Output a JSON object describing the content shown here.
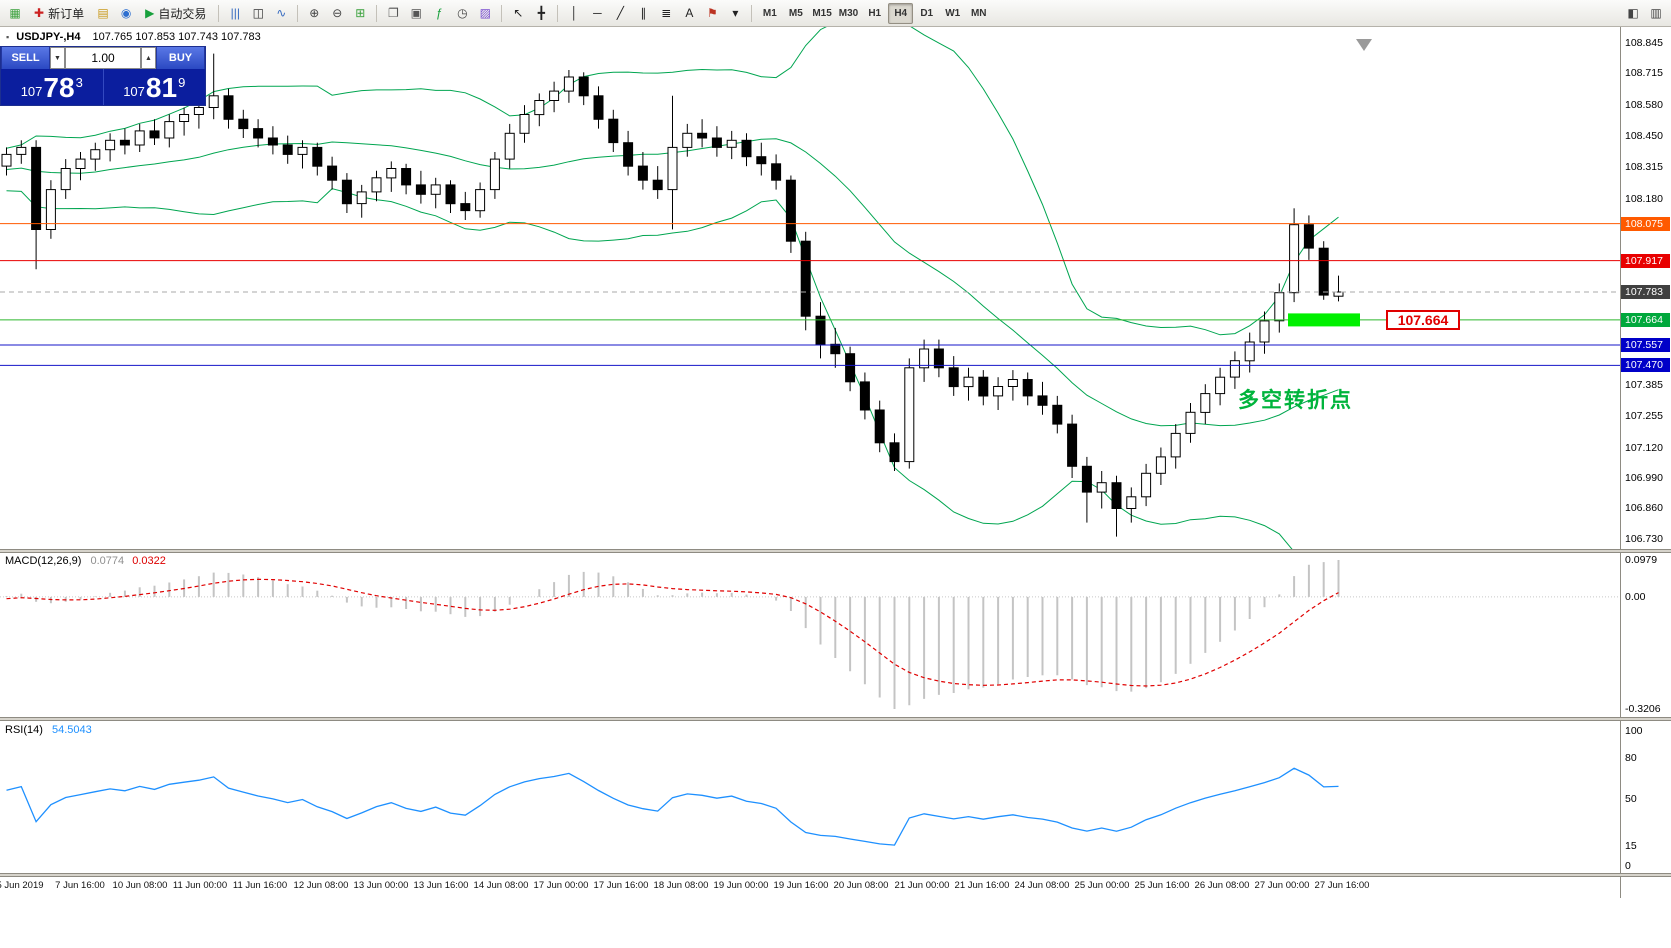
{
  "colors": {
    "bands": "#00A550",
    "candle_up": "#ffffff",
    "candle_down": "#000000",
    "macd_hist": "#c4c4c4",
    "macd_signal": "#e00000",
    "rsi": "#1E90FF",
    "accent_blue": "#0b1e9e"
  },
  "toolbar": {
    "items": [
      {
        "t": "icon",
        "name": "new-chart-button",
        "g": "▦",
        "c": "#3aa13c"
      },
      {
        "t": "btn",
        "name": "new-order-button",
        "label": "新订单",
        "g": "✚",
        "c": "#cc2222"
      },
      {
        "t": "icon",
        "name": "profiles-button",
        "g": "▤",
        "c": "#c99a1e"
      },
      {
        "t": "icon",
        "name": "market-watch-button",
        "g": "◉",
        "c": "#2d6fd0"
      },
      {
        "t": "btn",
        "name": "algo-trading-button",
        "label": "自动交易",
        "g": "▶",
        "c": "#18a03c"
      },
      {
        "t": "sep"
      },
      {
        "t": "icon",
        "name": "bar-chart-button",
        "g": "|||",
        "c": "#356ac0"
      },
      {
        "t": "icon",
        "name": "candlestick-chart-button",
        "g": "◫",
        "c": "#333333"
      },
      {
        "t": "icon",
        "name": "line-chart-button",
        "g": "∿",
        "c": "#356ac0"
      },
      {
        "t": "sep"
      },
      {
        "t": "icon",
        "name": "zoom-in-button",
        "g": "⊕",
        "c": "#444444"
      },
      {
        "t": "icon",
        "name": "zoom-out-button",
        "g": "⊖",
        "c": "#444444"
      },
      {
        "t": "icon",
        "name": "tile-windows-button",
        "g": "⊞",
        "c": "#3aa13c"
      },
      {
        "t": "sep"
      },
      {
        "t": "icon",
        "name": "arrange-windows-button",
        "g": "❐",
        "c": "#555555"
      },
      {
        "t": "icon",
        "name": "cascade-windows-button",
        "g": "▣",
        "c": "#555555"
      },
      {
        "t": "icon",
        "name": "indicators-button",
        "g": "ƒ",
        "c": "#18a03c"
      },
      {
        "t": "icon",
        "name": "periods-button",
        "g": "◷",
        "c": "#444444"
      },
      {
        "t": "icon",
        "name": "templates-button",
        "g": "▨",
        "c": "#7a4fd0"
      },
      {
        "t": "sep"
      },
      {
        "t": "icon",
        "name": "cursor-button",
        "g": "↖",
        "c": "#222222"
      },
      {
        "t": "icon",
        "name": "crosshair-button",
        "g": "╋",
        "c": "#222222"
      },
      {
        "t": "sep"
      },
      {
        "t": "icon",
        "name": "vertical-line-button",
        "g": "│",
        "c": "#222222"
      },
      {
        "t": "icon",
        "name": "horizontal-line-button",
        "g": "─",
        "c": "#222222"
      },
      {
        "t": "icon",
        "name": "trendline-button",
        "g": "╱",
        "c": "#222222"
      },
      {
        "t": "icon",
        "name": "channel-button",
        "g": "∥",
        "c": "#222222"
      },
      {
        "t": "icon",
        "name": "fibonacci-button",
        "g": "≣",
        "c": "#222222"
      },
      {
        "t": "icon",
        "name": "text-button",
        "g": "A",
        "c": "#222222"
      },
      {
        "t": "icon",
        "name": "arrow-label-button",
        "g": "⚑",
        "c": "#bb3322"
      },
      {
        "t": "icon",
        "name": "shapes-dropdown",
        "g": "▾",
        "c": "#222222"
      },
      {
        "t": "sep"
      }
    ],
    "timeframes": [
      {
        "label": "M1"
      },
      {
        "label": "M5"
      },
      {
        "label": "M15"
      },
      {
        "label": "M30"
      },
      {
        "label": "H1"
      },
      {
        "label": "H4",
        "active": true
      },
      {
        "label": "D1"
      },
      {
        "label": "W1"
      },
      {
        "label": "MN"
      }
    ],
    "right_icons": [
      {
        "name": "dock-panel-button",
        "g": "◧"
      },
      {
        "name": "layout-button",
        "g": "▥"
      }
    ]
  },
  "trade_panel": {
    "sell_label": "SELL",
    "buy_label": "BUY",
    "lot": "1.00",
    "lot_down": "▼",
    "lot_up": "▲",
    "sell": {
      "prefix": "107",
      "pips": "78",
      "frac": "3"
    },
    "buy": {
      "prefix": "107",
      "pips": "81",
      "frac": "9"
    }
  },
  "chart": {
    "symbol": "USDJPY-,H4",
    "ohlc": "107.765 107.853 107.743 107.783",
    "axis_ticks": [
      108.845,
      108.715,
      108.58,
      108.45,
      108.315,
      108.18,
      107.385,
      107.255,
      107.12,
      106.99,
      106.86,
      106.73
    ],
    "hlines": [
      {
        "price": 108.075,
        "color": "#ff5a00",
        "badge_bg": "#ff5a00",
        "label": "108.075",
        "style": "solid"
      },
      {
        "price": 107.917,
        "color": "#e80000",
        "badge_bg": "#e80000",
        "label": "107.917",
        "style": "solid"
      },
      {
        "price": 107.783,
        "color": "#aaaaaa",
        "badge_bg": "#404040",
        "label": "107.783",
        "style": "dashed"
      },
      {
        "price": 107.664,
        "color": "#2db82d",
        "badge_bg": "#00a83c",
        "label": "107.664",
        "style": "solid"
      },
      {
        "price": 107.557,
        "color": "#1414c8",
        "badge_bg": "#0000c8",
        "label": "107.557",
        "style": "solid"
      },
      {
        "price": 107.47,
        "color": "#1414c8",
        "badge_bg": "#0000c8",
        "label": "107.470",
        "style": "solid"
      }
    ],
    "green_zone": {
      "price": 107.664,
      "label": "107.664",
      "fill": "#00f000"
    },
    "annotation": {
      "text": "多空转折点",
      "color": "#00b43c"
    },
    "time_labels": [
      "5 Jun 2019",
      "7 Jun 16:00",
      "10 Jun 08:00",
      "11 Jun 00:00",
      "11 Jun 16:00",
      "12 Jun 08:00",
      "13 Jun 00:00",
      "13 Jun 16:00",
      "14 Jun 08:00",
      "17 Jun 00:00",
      "17 Jun 16:00",
      "18 Jun 08:00",
      "19 Jun 00:00",
      "19 Jun 16:00",
      "20 Jun 08:00",
      "21 Jun 00:00",
      "21 Jun 16:00",
      "24 Jun 08:00",
      "25 Jun 00:00",
      "25 Jun 16:00",
      "26 Jun 08:00",
      "27 Jun 00:00",
      "27 Jun 16:00"
    ]
  },
  "macd": {
    "label": "MACD(12,26,9)",
    "value_main": "0.0774",
    "value_signal": "0.0322",
    "axis": [
      "0.0979",
      "0.00",
      "-0.3206"
    ]
  },
  "rsi": {
    "label": "RSI(14)",
    "value": "54.5043",
    "axis": [
      "100",
      "80",
      "50",
      "15",
      "0"
    ]
  },
  "chart_data": {
    "type": "candlestick",
    "symbol": "USDJPY",
    "timeframe": "H4",
    "y_axis": {
      "min": 106.73,
      "max": 108.845
    },
    "current_bar": {
      "open": 107.765,
      "high": 107.853,
      "low": 107.743,
      "close": 107.783
    },
    "overlays": [
      {
        "name": "Bollinger Bands",
        "period": 20,
        "deviation": 2
      }
    ],
    "indicators": [
      {
        "name": "MACD",
        "params": [
          12,
          26,
          9
        ],
        "values": [
          0.0774,
          0.0322
        ]
      },
      {
        "name": "RSI",
        "params": [
          14
        ],
        "value": 54.5043
      }
    ],
    "ohlc": [
      [
        108.32,
        108.4,
        108.28,
        108.37
      ],
      [
        108.37,
        108.43,
        108.33,
        108.4
      ],
      [
        108.4,
        108.43,
        107.88,
        108.05
      ],
      [
        108.05,
        108.26,
        108.01,
        108.22
      ],
      [
        108.22,
        108.35,
        108.18,
        108.31
      ],
      [
        108.31,
        108.38,
        108.26,
        108.35
      ],
      [
        108.35,
        108.42,
        108.3,
        108.39
      ],
      [
        108.39,
        108.46,
        108.34,
        108.43
      ],
      [
        108.43,
        108.48,
        108.37,
        108.41
      ],
      [
        108.41,
        108.5,
        108.38,
        108.47
      ],
      [
        108.47,
        108.52,
        108.41,
        108.44
      ],
      [
        108.44,
        108.54,
        108.4,
        108.51
      ],
      [
        108.51,
        108.57,
        108.45,
        108.54
      ],
      [
        108.54,
        108.6,
        108.48,
        108.57
      ],
      [
        108.57,
        108.8,
        108.52,
        108.62
      ],
      [
        108.62,
        108.65,
        108.48,
        108.52
      ],
      [
        108.52,
        108.56,
        108.44,
        108.48
      ],
      [
        108.48,
        108.52,
        108.4,
        108.44
      ],
      [
        108.44,
        108.49,
        108.37,
        108.41
      ],
      [
        108.41,
        108.45,
        108.33,
        108.37
      ],
      [
        108.37,
        108.43,
        108.31,
        108.4
      ],
      [
        108.4,
        108.42,
        108.28,
        108.32
      ],
      [
        108.32,
        108.36,
        108.22,
        108.26
      ],
      [
        108.26,
        108.29,
        108.12,
        108.16
      ],
      [
        108.16,
        108.24,
        108.1,
        108.21
      ],
      [
        108.21,
        108.3,
        108.17,
        108.27
      ],
      [
        108.27,
        108.34,
        108.21,
        108.31
      ],
      [
        108.31,
        108.33,
        108.2,
        108.24
      ],
      [
        108.24,
        108.3,
        108.16,
        108.2
      ],
      [
        108.2,
        108.27,
        108.14,
        108.24
      ],
      [
        108.24,
        108.26,
        108.12,
        108.16
      ],
      [
        108.16,
        108.21,
        108.09,
        108.13
      ],
      [
        108.13,
        108.25,
        108.1,
        108.22
      ],
      [
        108.22,
        108.38,
        108.18,
        108.35
      ],
      [
        108.35,
        108.5,
        108.31,
        108.46
      ],
      [
        108.46,
        108.58,
        108.42,
        108.54
      ],
      [
        108.54,
        108.63,
        108.49,
        108.6
      ],
      [
        108.6,
        108.68,
        108.55,
        108.64
      ],
      [
        108.64,
        108.73,
        108.59,
        108.7
      ],
      [
        108.7,
        108.72,
        108.58,
        108.62
      ],
      [
        108.62,
        108.66,
        108.48,
        108.52
      ],
      [
        108.52,
        108.56,
        108.38,
        108.42
      ],
      [
        108.42,
        108.47,
        108.28,
        108.32
      ],
      [
        108.32,
        108.38,
        108.22,
        108.26
      ],
      [
        108.26,
        108.32,
        108.18,
        108.22
      ],
      [
        108.22,
        108.62,
        108.05,
        108.4
      ],
      [
        108.4,
        108.5,
        108.36,
        108.46
      ],
      [
        108.46,
        108.52,
        108.4,
        108.44
      ],
      [
        108.44,
        108.49,
        108.36,
        108.4
      ],
      [
        108.4,
        108.47,
        108.35,
        108.43
      ],
      [
        108.43,
        108.46,
        108.32,
        108.36
      ],
      [
        108.36,
        108.42,
        108.28,
        108.33
      ],
      [
        108.33,
        108.37,
        108.22,
        108.26
      ],
      [
        108.26,
        108.28,
        107.95,
        108.0
      ],
      [
        108.0,
        108.04,
        107.62,
        107.68
      ],
      [
        107.68,
        107.74,
        107.5,
        107.56
      ],
      [
        107.56,
        107.63,
        107.46,
        107.52
      ],
      [
        107.52,
        107.55,
        107.36,
        107.4
      ],
      [
        107.4,
        107.44,
        107.24,
        107.28
      ],
      [
        107.28,
        107.32,
        107.1,
        107.14
      ],
      [
        107.14,
        107.18,
        107.02,
        107.06
      ],
      [
        107.06,
        107.5,
        107.03,
        107.46
      ],
      [
        107.46,
        107.58,
        107.4,
        107.54
      ],
      [
        107.54,
        107.58,
        107.42,
        107.46
      ],
      [
        107.46,
        107.51,
        107.34,
        107.38
      ],
      [
        107.38,
        107.46,
        107.32,
        107.42
      ],
      [
        107.42,
        107.45,
        107.3,
        107.34
      ],
      [
        107.34,
        107.42,
        107.28,
        107.38
      ],
      [
        107.38,
        107.45,
        107.32,
        107.41
      ],
      [
        107.41,
        107.44,
        107.3,
        107.34
      ],
      [
        107.34,
        107.4,
        107.26,
        107.3
      ],
      [
        107.3,
        107.34,
        107.18,
        107.22
      ],
      [
        107.22,
        107.26,
        106.99,
        107.04
      ],
      [
        107.04,
        107.08,
        106.8,
        106.93
      ],
      [
        106.93,
        107.02,
        106.86,
        106.97
      ],
      [
        106.97,
        107.0,
        106.74,
        106.86
      ],
      [
        106.86,
        106.95,
        106.8,
        106.91
      ],
      [
        106.91,
        107.05,
        106.87,
        107.01
      ],
      [
        107.01,
        107.12,
        106.96,
        107.08
      ],
      [
        107.08,
        107.22,
        107.03,
        107.18
      ],
      [
        107.18,
        107.31,
        107.14,
        107.27
      ],
      [
        107.27,
        107.39,
        107.22,
        107.35
      ],
      [
        107.35,
        107.46,
        107.3,
        107.42
      ],
      [
        107.42,
        107.53,
        107.37,
        107.49
      ],
      [
        107.49,
        107.61,
        107.44,
        107.57
      ],
      [
        107.57,
        107.7,
        107.52,
        107.66
      ],
      [
        107.66,
        107.82,
        107.61,
        107.78
      ],
      [
        107.78,
        108.14,
        107.74,
        108.07
      ],
      [
        108.07,
        108.11,
        107.92,
        107.97
      ],
      [
        107.97,
        108.0,
        107.75,
        107.77
      ],
      [
        107.765,
        107.853,
        107.743,
        107.783
      ]
    ]
  }
}
